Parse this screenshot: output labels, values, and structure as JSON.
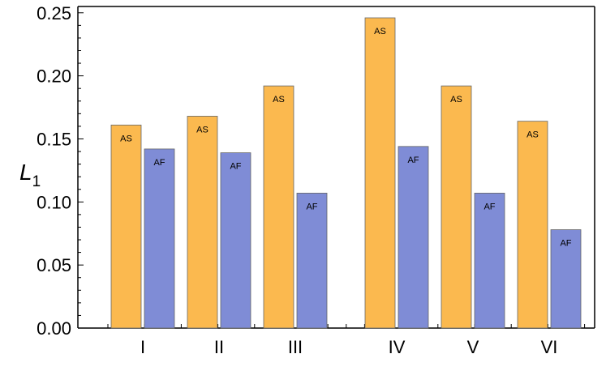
{
  "chart_data": {
    "type": "bar",
    "categories": [
      "I",
      "II",
      "III",
      "IV",
      "V",
      "VI"
    ],
    "series": [
      {
        "name": "AS",
        "color": "#FBB94F",
        "values": [
          0.161,
          0.168,
          0.192,
          0.246,
          0.192,
          0.164
        ]
      },
      {
        "name": "AF",
        "color": "#7F8CD6",
        "values": [
          0.142,
          0.139,
          0.107,
          0.144,
          0.107,
          0.078
        ]
      }
    ],
    "bar_labels": [
      "AS",
      "AF"
    ],
    "ylabel_main": "L",
    "ylabel_sub": "1",
    "ylim": [
      0,
      0.255
    ],
    "yticks": [
      "0.00",
      "0.05",
      "0.10",
      "0.15",
      "0.20",
      "0.25"
    ],
    "ytick_values": [
      0,
      0.05,
      0.1,
      0.15,
      0.2,
      0.25
    ],
    "grid": false,
    "legend": "none"
  }
}
